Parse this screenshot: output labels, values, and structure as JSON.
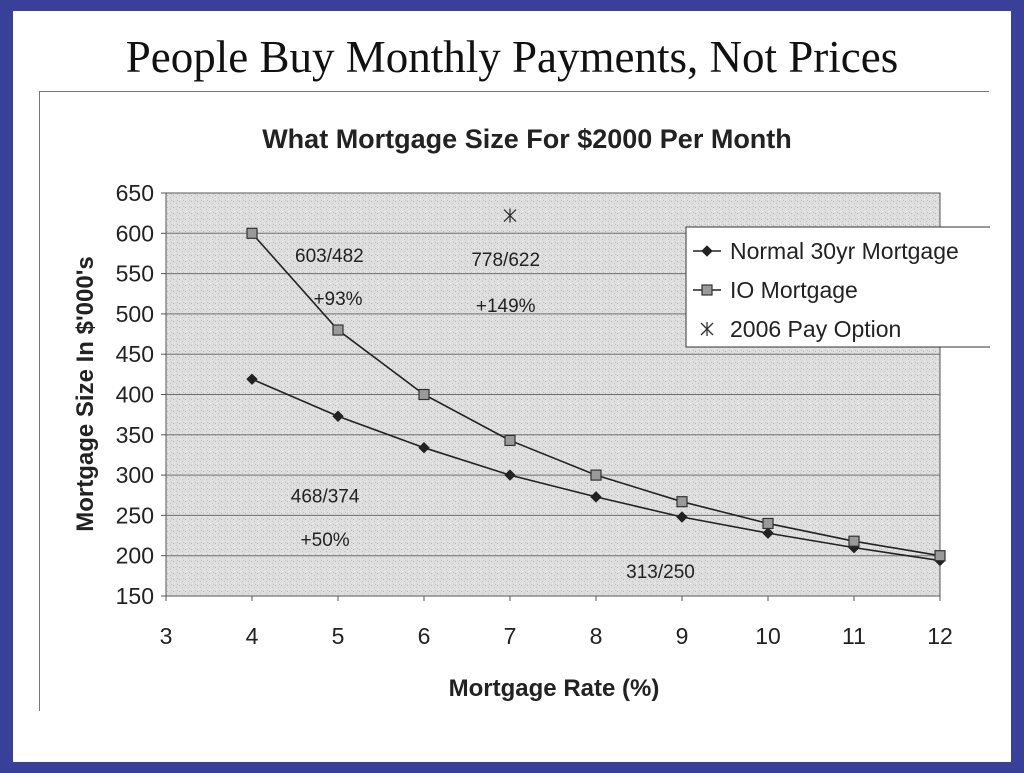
{
  "slide": {
    "title": "People Buy Monthly Payments, Not Prices"
  },
  "colors": {
    "border": "#38409a",
    "plot_background": "#dedede",
    "series_line": "#222222",
    "io_marker_fill": "#9a9a9a"
  },
  "chart_data": {
    "type": "line",
    "title": "What Mortgage Size For $2000 Per Month",
    "xlabel": "Mortgage Rate (%)",
    "ylabel": "Mortgage Size In $'000's",
    "xlim": [
      3,
      12
    ],
    "ylim": [
      150,
      650
    ],
    "x_ticks": [
      3,
      4,
      5,
      6,
      7,
      8,
      9,
      10,
      11,
      12
    ],
    "y_ticks": [
      150,
      200,
      250,
      300,
      350,
      400,
      450,
      500,
      550,
      600,
      650
    ],
    "grid": "horizontal",
    "legend_position": "top-right",
    "series": [
      {
        "name": "Normal 30yr Mortgage",
        "marker": "diamond",
        "points": [
          [
            4,
            419
          ],
          [
            5,
            373
          ],
          [
            6,
            334
          ],
          [
            7,
            300
          ],
          [
            8,
            273
          ],
          [
            9,
            248
          ],
          [
            10,
            228
          ],
          [
            11,
            210
          ],
          [
            12,
            194
          ]
        ]
      },
      {
        "name": "IO Mortgage",
        "marker": "square",
        "points": [
          [
            4,
            600
          ],
          [
            5,
            480
          ],
          [
            6,
            400
          ],
          [
            7,
            343
          ],
          [
            8,
            300
          ],
          [
            9,
            267
          ],
          [
            10,
            240
          ],
          [
            11,
            218
          ],
          [
            12,
            200
          ]
        ]
      },
      {
        "name": "2006 Pay Option",
        "marker": "star",
        "points": [
          [
            7,
            622
          ]
        ]
      }
    ],
    "annotations": [
      {
        "text": "603/482",
        "x": 4.9,
        "y": 573
      },
      {
        "text": "+93%",
        "x": 5.0,
        "y": 520
      },
      {
        "text": "778/622",
        "x": 6.95,
        "y": 568
      },
      {
        "text": "+149%",
        "x": 6.95,
        "y": 511
      },
      {
        "text": "468/374",
        "x": 4.85,
        "y": 275
      },
      {
        "text": "+50%",
        "x": 4.85,
        "y": 221
      },
      {
        "text": "313/250",
        "x": 8.75,
        "y": 181
      }
    ]
  }
}
